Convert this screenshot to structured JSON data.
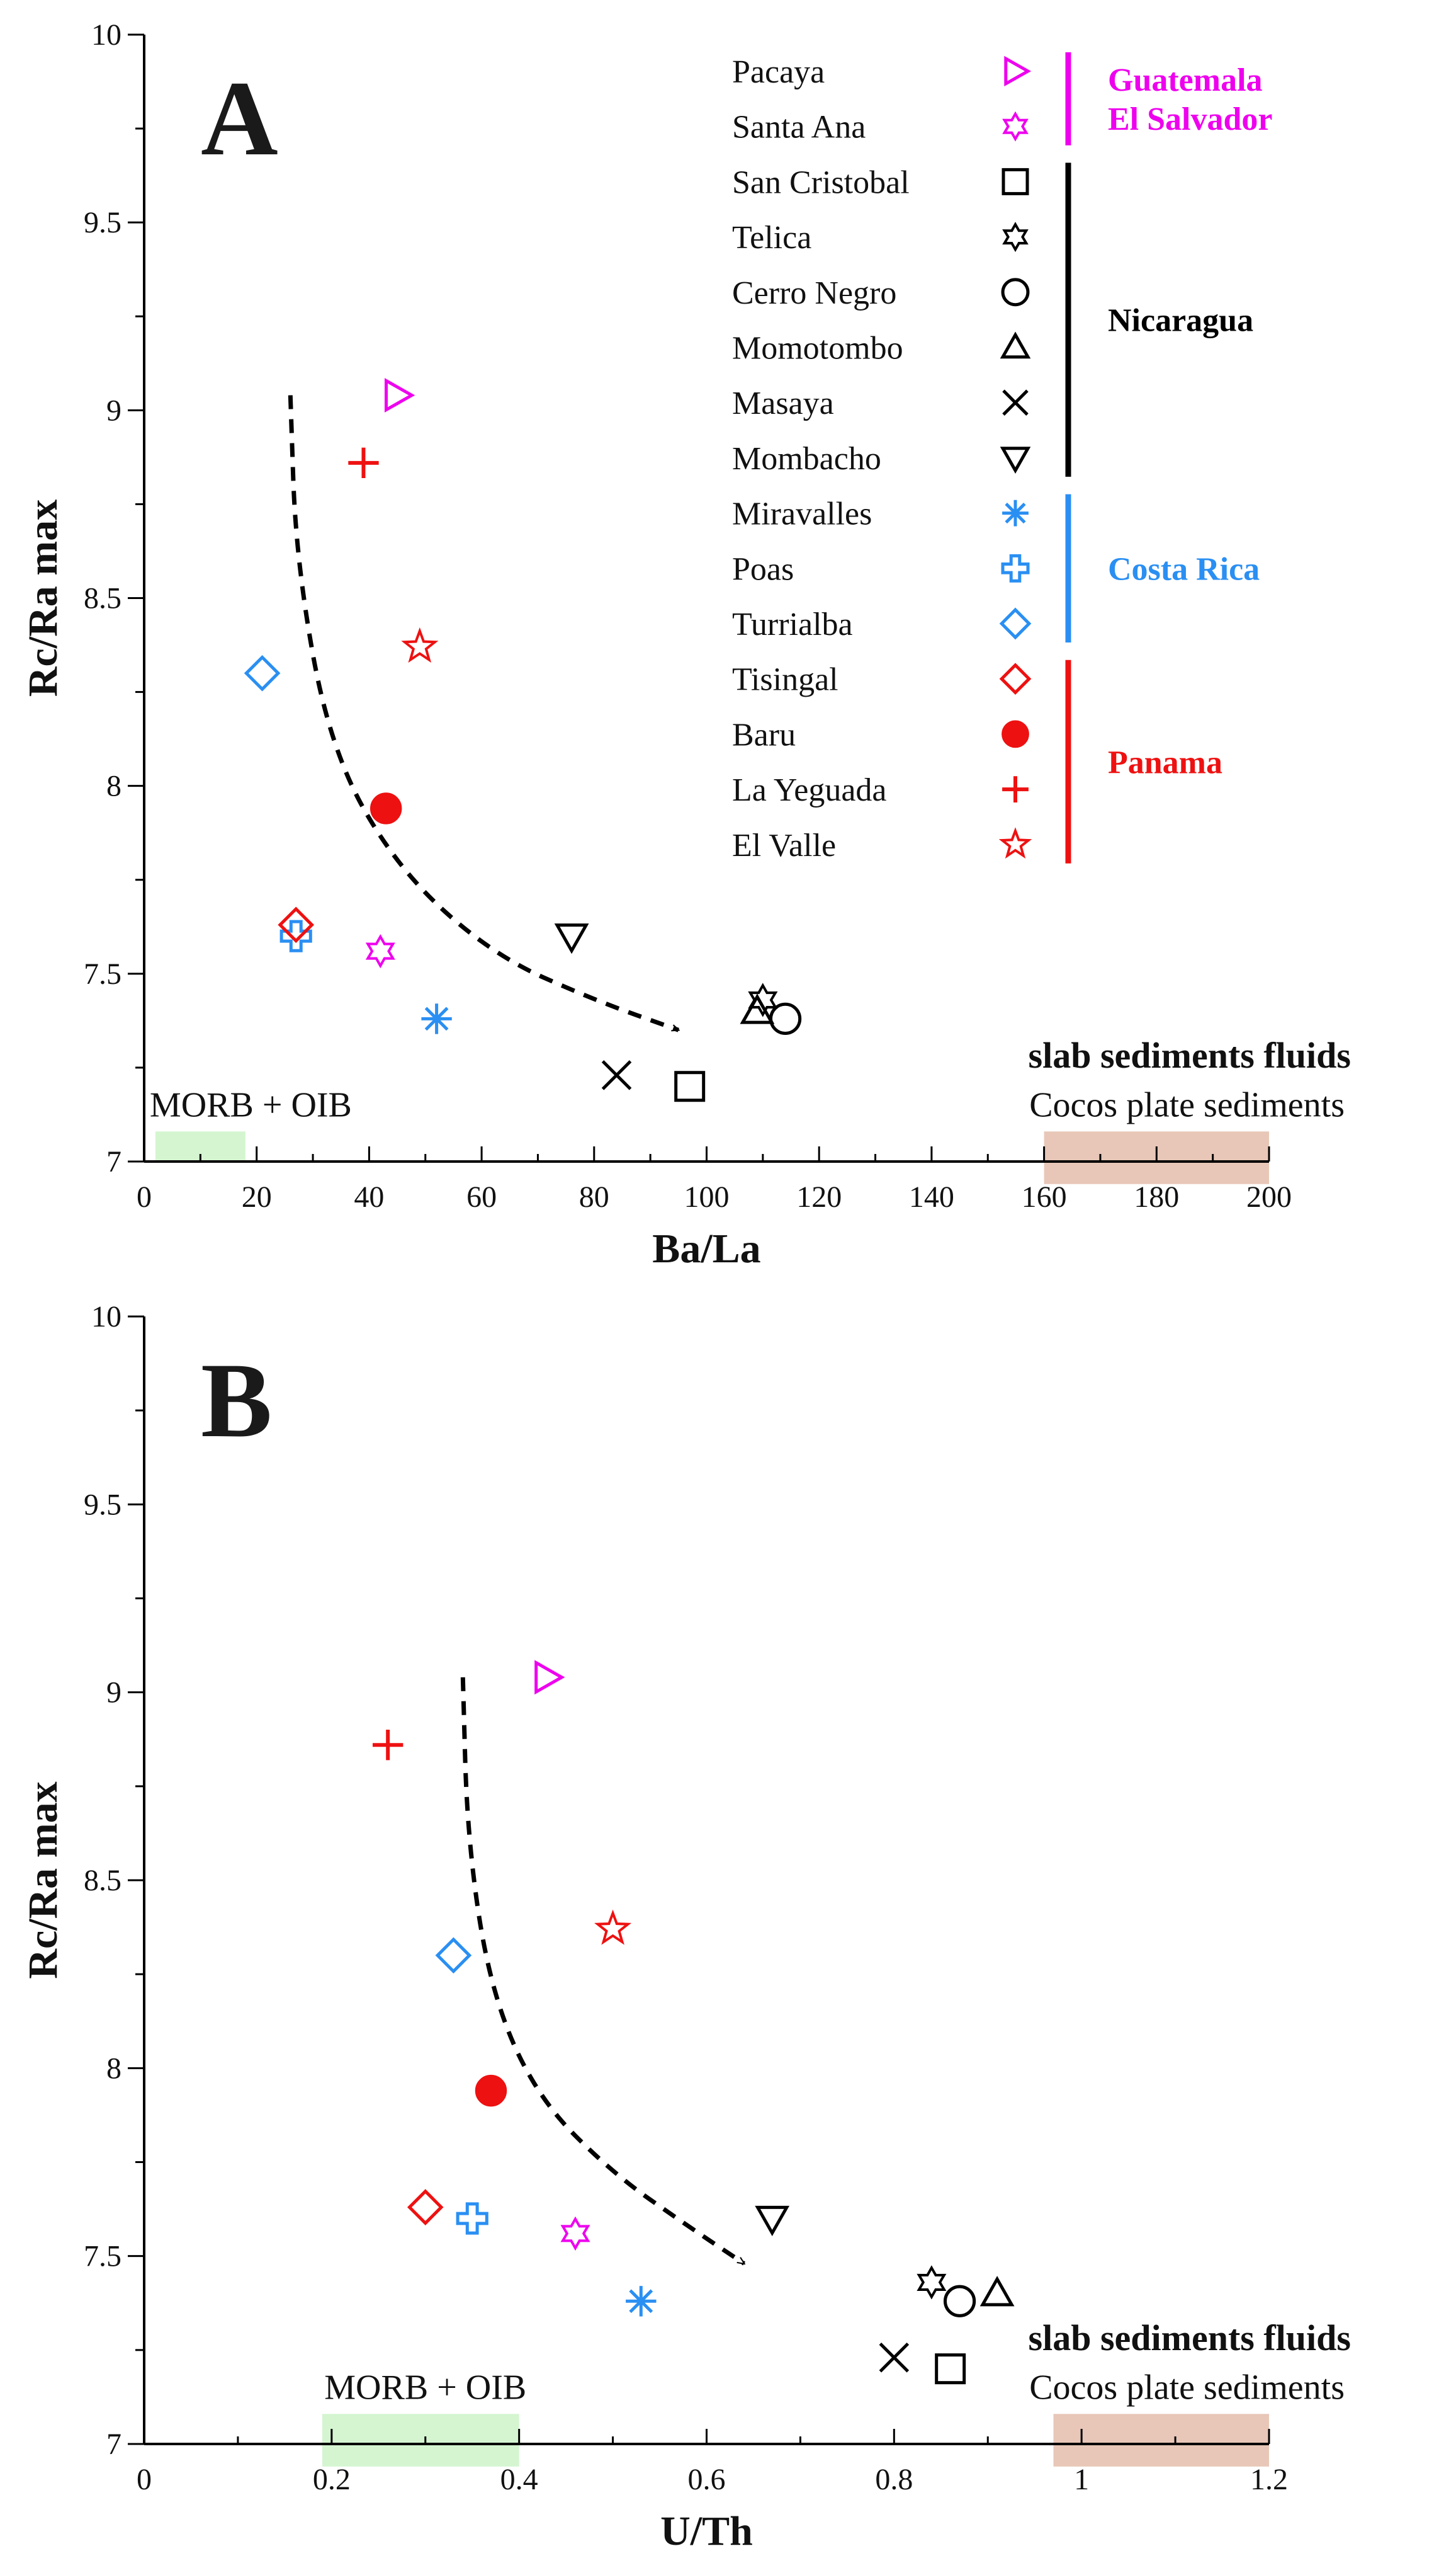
{
  "colors": {
    "guatemala": "#ee00ee",
    "nicaragua": "#000000",
    "costa_rica": "#2a8ff2",
    "panama": "#ee1111",
    "morb_box": "#d4f5d0",
    "sediment_box": "#e8c7b8"
  },
  "legend": {
    "items": [
      {
        "name": "Pacaya",
        "marker": "triangle-right",
        "group": "guatemala"
      },
      {
        "name": "Santa Ana",
        "marker": "hexagram",
        "group": "guatemala"
      },
      {
        "name": "San Cristobal",
        "marker": "square",
        "group": "nicaragua"
      },
      {
        "name": "Telica",
        "marker": "hexagram",
        "group": "nicaragua"
      },
      {
        "name": "Cerro Negro",
        "marker": "circle",
        "group": "nicaragua"
      },
      {
        "name": "Momotombo",
        "marker": "triangle-up",
        "group": "nicaragua"
      },
      {
        "name": "Masaya",
        "marker": "x",
        "group": "nicaragua"
      },
      {
        "name": "Mombacho",
        "marker": "triangle-down",
        "group": "nicaragua"
      },
      {
        "name": "Miravalles",
        "marker": "asterisk",
        "group": "costa_rica"
      },
      {
        "name": "Poas",
        "marker": "cross-open",
        "group": "costa_rica"
      },
      {
        "name": "Turrialba",
        "marker": "diamond",
        "group": "costa_rica"
      },
      {
        "name": "Tisingal",
        "marker": "diamond",
        "group": "panama"
      },
      {
        "name": "Baru",
        "marker": "circle-filled",
        "group": "panama"
      },
      {
        "name": "La Yeguada",
        "marker": "plus",
        "group": "panama"
      },
      {
        "name": "El Valle",
        "marker": "star",
        "group": "panama"
      }
    ],
    "groups": [
      {
        "key": "guatemala",
        "lines": [
          "Guatemala",
          "El Salvador"
        ],
        "from": 0,
        "to": 1
      },
      {
        "key": "nicaragua",
        "lines": [
          "Nicaragua"
        ],
        "from": 2,
        "to": 7
      },
      {
        "key": "costa_rica",
        "lines": [
          "Costa Rica"
        ],
        "from": 8,
        "to": 10
      },
      {
        "key": "panama",
        "lines": [
          "Panama"
        ],
        "from": 11,
        "to": 14
      }
    ]
  },
  "chart_data": [
    {
      "type": "scatter",
      "panel_label": "A",
      "xlabel": "Ba/La",
      "ylabel": "Rc/Ra max",
      "xlim": [
        0,
        200
      ],
      "ylim": [
        7,
        10
      ],
      "xticks": [
        0,
        20,
        40,
        60,
        80,
        100,
        120,
        140,
        160,
        180,
        200
      ],
      "xtick_labels": [
        "0",
        "20",
        "40",
        "60",
        "80",
        "100",
        "120",
        "140",
        "160",
        "180",
        "200"
      ],
      "yticks": [
        7,
        7.5,
        8,
        8.5,
        9,
        9.5,
        10
      ],
      "ytick_labels": [
        "7",
        "7.5",
        "8",
        "8.5",
        "9",
        "9.5",
        "10"
      ],
      "points": [
        {
          "name": "Pacaya",
          "x": 45,
          "y": 9.04
        },
        {
          "name": "Santa Ana",
          "x": 42,
          "y": 7.56
        },
        {
          "name": "San Cristobal",
          "x": 97,
          "y": 7.2
        },
        {
          "name": "Telica",
          "x": 110,
          "y": 7.43
        },
        {
          "name": "Cerro Negro",
          "x": 114,
          "y": 7.38
        },
        {
          "name": "Momotombo",
          "x": 109,
          "y": 7.4
        },
        {
          "name": "Masaya",
          "x": 84,
          "y": 7.23
        },
        {
          "name": "Mombacho",
          "x": 76,
          "y": 7.6
        },
        {
          "name": "Miravalles",
          "x": 52,
          "y": 7.38
        },
        {
          "name": "Poas",
          "x": 27,
          "y": 7.6
        },
        {
          "name": "Turrialba",
          "x": 21,
          "y": 8.3
        },
        {
          "name": "Tisingal",
          "x": 27,
          "y": 7.63
        },
        {
          "name": "Baru",
          "x": 43,
          "y": 7.94
        },
        {
          "name": "La Yeguada",
          "x": 39,
          "y": 8.86
        },
        {
          "name": "El Valle",
          "x": 49,
          "y": 8.37
        }
      ],
      "trend_arrow": [
        [
          26,
          9.04
        ],
        [
          27,
          8.6
        ],
        [
          33,
          8.1
        ],
        [
          45,
          7.78
        ],
        [
          62,
          7.55
        ],
        [
          80,
          7.43
        ],
        [
          95,
          7.35
        ]
      ],
      "regions": [
        {
          "label": "MORB + OIB",
          "x": [
            2,
            18
          ],
          "y": [
            7.0,
            7.08
          ],
          "fill": "morb_box",
          "label_at": [
            1,
            7.12
          ]
        },
        {
          "label": "Cocos plate sediments",
          "x": [
            160,
            200
          ],
          "y": [
            6.94,
            7.08
          ],
          "fill": "sediment_box",
          "label_at": [
            200,
            7.12
          ]
        }
      ],
      "annotations": [
        {
          "text": "slab sediments fluids",
          "x": 200,
          "y": 7.25
        }
      ]
    },
    {
      "type": "scatter",
      "panel_label": "B",
      "xlabel": "U/Th",
      "ylabel": "Rc/Ra max",
      "xlim": [
        0,
        1.2
      ],
      "ylim": [
        7,
        10
      ],
      "xticks": [
        0,
        0.2,
        0.4,
        0.6,
        0.8,
        1.0,
        1.2
      ],
      "xtick_labels": [
        "0",
        "0.2",
        "0.4",
        "0.6",
        "0.8",
        "1",
        "1.2"
      ],
      "yticks": [
        7,
        7.5,
        8,
        8.5,
        9,
        9.5,
        10
      ],
      "ytick_labels": [
        "7",
        "7.5",
        "8",
        "8.5",
        "9",
        "9.5",
        "10"
      ],
      "points": [
        {
          "name": "Pacaya",
          "x": 0.43,
          "y": 9.04
        },
        {
          "name": "Santa Ana",
          "x": 0.46,
          "y": 7.56
        },
        {
          "name": "San Cristobal",
          "x": 0.86,
          "y": 7.2
        },
        {
          "name": "Telica",
          "x": 0.84,
          "y": 7.43
        },
        {
          "name": "Cerro Negro",
          "x": 0.87,
          "y": 7.38
        },
        {
          "name": "Momotombo",
          "x": 0.91,
          "y": 7.4
        },
        {
          "name": "Masaya",
          "x": 0.8,
          "y": 7.23
        },
        {
          "name": "Mombacho",
          "x": 0.67,
          "y": 7.6
        },
        {
          "name": "Miravalles",
          "x": 0.53,
          "y": 7.38
        },
        {
          "name": "Poas",
          "x": 0.35,
          "y": 7.6
        },
        {
          "name": "Turrialba",
          "x": 0.33,
          "y": 8.3
        },
        {
          "name": "Tisingal",
          "x": 0.3,
          "y": 7.63
        },
        {
          "name": "Baru",
          "x": 0.37,
          "y": 7.94
        },
        {
          "name": "La Yeguada",
          "x": 0.26,
          "y": 8.86
        },
        {
          "name": "El Valle",
          "x": 0.5,
          "y": 8.37
        }
      ],
      "trend_arrow": [
        [
          0.34,
          9.04
        ],
        [
          0.345,
          8.6
        ],
        [
          0.37,
          8.2
        ],
        [
          0.42,
          7.92
        ],
        [
          0.5,
          7.72
        ],
        [
          0.58,
          7.58
        ],
        [
          0.64,
          7.48
        ]
      ],
      "regions": [
        {
          "label": "MORB + OIB",
          "x": [
            0.19,
            0.4
          ],
          "y": [
            6.94,
            7.08
          ],
          "fill": "morb_box",
          "label_at": [
            0.3,
            7.12
          ]
        },
        {
          "label": "Cocos plate sediments",
          "x": [
            0.97,
            1.2
          ],
          "y": [
            6.94,
            7.08
          ],
          "fill": "sediment_box",
          "label_at": [
            1.2,
            7.12
          ]
        }
      ],
      "annotations": [
        {
          "text": "slab sediments fluids",
          "x": 1.2,
          "y": 7.25
        }
      ]
    }
  ]
}
